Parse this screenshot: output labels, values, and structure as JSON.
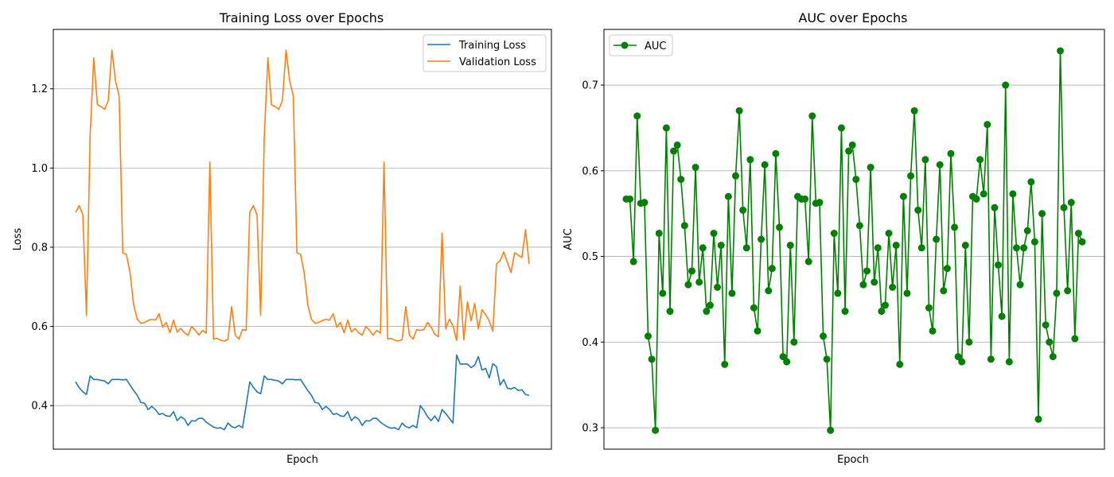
{
  "chart_data": [
    {
      "type": "line",
      "title": "Training Loss over Epochs",
      "xlabel": "Epoch",
      "ylabel": "Loss",
      "ylim": [
        0.29,
        1.35
      ],
      "yticks": [
        0.4,
        0.6,
        0.8,
        1.0,
        1.2
      ],
      "grid": "horizontal",
      "legend": "top-right",
      "x_tick_labels": "none",
      "series": [
        {
          "name": "Training Loss",
          "color": "#1f77b4",
          "values": [
            0.46,
            0.445,
            0.435,
            0.428,
            0.475,
            0.466,
            0.466,
            0.464,
            0.462,
            0.455,
            0.466,
            0.466,
            0.466,
            0.465,
            0.466,
            0.452,
            0.438,
            0.426,
            0.408,
            0.406,
            0.39,
            0.398,
            0.39,
            0.378,
            0.38,
            0.374,
            0.373,
            0.385,
            0.362,
            0.372,
            0.366,
            0.35,
            0.362,
            0.361,
            0.368,
            0.368,
            0.358,
            0.352,
            0.346,
            0.343,
            0.344,
            0.339,
            0.356,
            0.347,
            0.344,
            0.35,
            0.344,
            0.4,
            0.46,
            0.446,
            0.435,
            0.43,
            0.475,
            0.466,
            0.466,
            0.464,
            0.462,
            0.455,
            0.466,
            0.466,
            0.466,
            0.465,
            0.466,
            0.452,
            0.438,
            0.426,
            0.408,
            0.406,
            0.39,
            0.398,
            0.39,
            0.378,
            0.38,
            0.374,
            0.373,
            0.385,
            0.362,
            0.372,
            0.366,
            0.35,
            0.362,
            0.361,
            0.368,
            0.368,
            0.358,
            0.352,
            0.346,
            0.343,
            0.344,
            0.339,
            0.356,
            0.347,
            0.344,
            0.35,
            0.344,
            0.4,
            0.388,
            0.372,
            0.362,
            0.374,
            0.36,
            0.39,
            0.38,
            0.368,
            0.356,
            0.528,
            0.505,
            0.505,
            0.505,
            0.496,
            0.502,
            0.524,
            0.49,
            0.494,
            0.47,
            0.506,
            0.498,
            0.452,
            0.466,
            0.444,
            0.442,
            0.446,
            0.438,
            0.44,
            0.428,
            0.426
          ]
        },
        {
          "name": "Validation Loss",
          "color": "#ff7f0e",
          "values": [
            0.888,
            0.905,
            0.882,
            0.628,
            1.08,
            1.278,
            1.16,
            1.155,
            1.148,
            1.17,
            1.298,
            1.22,
            1.182,
            0.786,
            0.782,
            0.736,
            0.655,
            0.618,
            0.608,
            0.61,
            0.615,
            0.618,
            0.616,
            0.632,
            0.598,
            0.61,
            0.584,
            0.616,
            0.586,
            0.595,
            0.584,
            0.578,
            0.6,
            0.59,
            0.578,
            0.59,
            0.583,
            1.015,
            0.568,
            0.57,
            0.565,
            0.563,
            0.567,
            0.65,
            0.578,
            0.568,
            0.592,
            0.59,
            0.888,
            0.905,
            0.882,
            0.628,
            1.08,
            1.278,
            1.16,
            1.155,
            1.148,
            1.17,
            1.298,
            1.22,
            1.182,
            0.786,
            0.782,
            0.736,
            0.655,
            0.618,
            0.608,
            0.61,
            0.615,
            0.618,
            0.616,
            0.632,
            0.598,
            0.61,
            0.584,
            0.616,
            0.586,
            0.595,
            0.584,
            0.578,
            0.6,
            0.59,
            0.578,
            0.59,
            0.583,
            1.015,
            0.568,
            0.57,
            0.565,
            0.563,
            0.567,
            0.65,
            0.578,
            0.568,
            0.592,
            0.59,
            0.592,
            0.61,
            0.598,
            0.58,
            0.574,
            0.836,
            0.594,
            0.618,
            0.602,
            0.565,
            0.702,
            0.566,
            0.662,
            0.614,
            0.658,
            0.594,
            0.642,
            0.63,
            0.614,
            0.588,
            0.758,
            0.766,
            0.788,
            0.762,
            0.736,
            0.786,
            0.78,
            0.774,
            0.844,
            0.758
          ]
        }
      ]
    },
    {
      "type": "line",
      "title": "AUC over Epochs",
      "xlabel": "Epoch",
      "ylabel": "AUC",
      "ylim": [
        0.275,
        0.765
      ],
      "yticks": [
        0.3,
        0.4,
        0.5,
        0.6,
        0.7
      ],
      "grid": "horizontal",
      "legend": "top-left",
      "x_tick_labels": "none",
      "series": [
        {
          "name": "AUC",
          "color": "#008000",
          "marker": "circle",
          "values": [
            0.567,
            0.567,
            0.494,
            0.664,
            0.562,
            0.563,
            0.407,
            0.38,
            0.297,
            0.527,
            0.457,
            0.65,
            0.436,
            0.623,
            0.63,
            0.59,
            0.536,
            0.467,
            0.483,
            0.604,
            0.47,
            0.51,
            0.436,
            0.443,
            0.527,
            0.464,
            0.513,
            0.374,
            0.57,
            0.457,
            0.594,
            0.67,
            0.554,
            0.51,
            0.613,
            0.44,
            0.413,
            0.52,
            0.607,
            0.46,
            0.486,
            0.62,
            0.534,
            0.383,
            0.377,
            0.513,
            0.4,
            0.57,
            0.567,
            0.567,
            0.494,
            0.664,
            0.562,
            0.563,
            0.407,
            0.38,
            0.297,
            0.527,
            0.457,
            0.65,
            0.436,
            0.623,
            0.63,
            0.59,
            0.536,
            0.467,
            0.483,
            0.604,
            0.47,
            0.51,
            0.436,
            0.443,
            0.527,
            0.464,
            0.513,
            0.374,
            0.57,
            0.457,
            0.594,
            0.67,
            0.554,
            0.51,
            0.613,
            0.44,
            0.413,
            0.52,
            0.607,
            0.46,
            0.486,
            0.62,
            0.534,
            0.383,
            0.377,
            0.513,
            0.4,
            0.57,
            0.567,
            0.613,
            0.573,
            0.654,
            0.38,
            0.557,
            0.49,
            0.43,
            0.7,
            0.377,
            0.573,
            0.51,
            0.467,
            0.51,
            0.53,
            0.587,
            0.517,
            0.31,
            0.55,
            0.42,
            0.4,
            0.383,
            0.457,
            0.74,
            0.557,
            0.46,
            0.563,
            0.404,
            0.527,
            0.517
          ]
        }
      ]
    }
  ]
}
